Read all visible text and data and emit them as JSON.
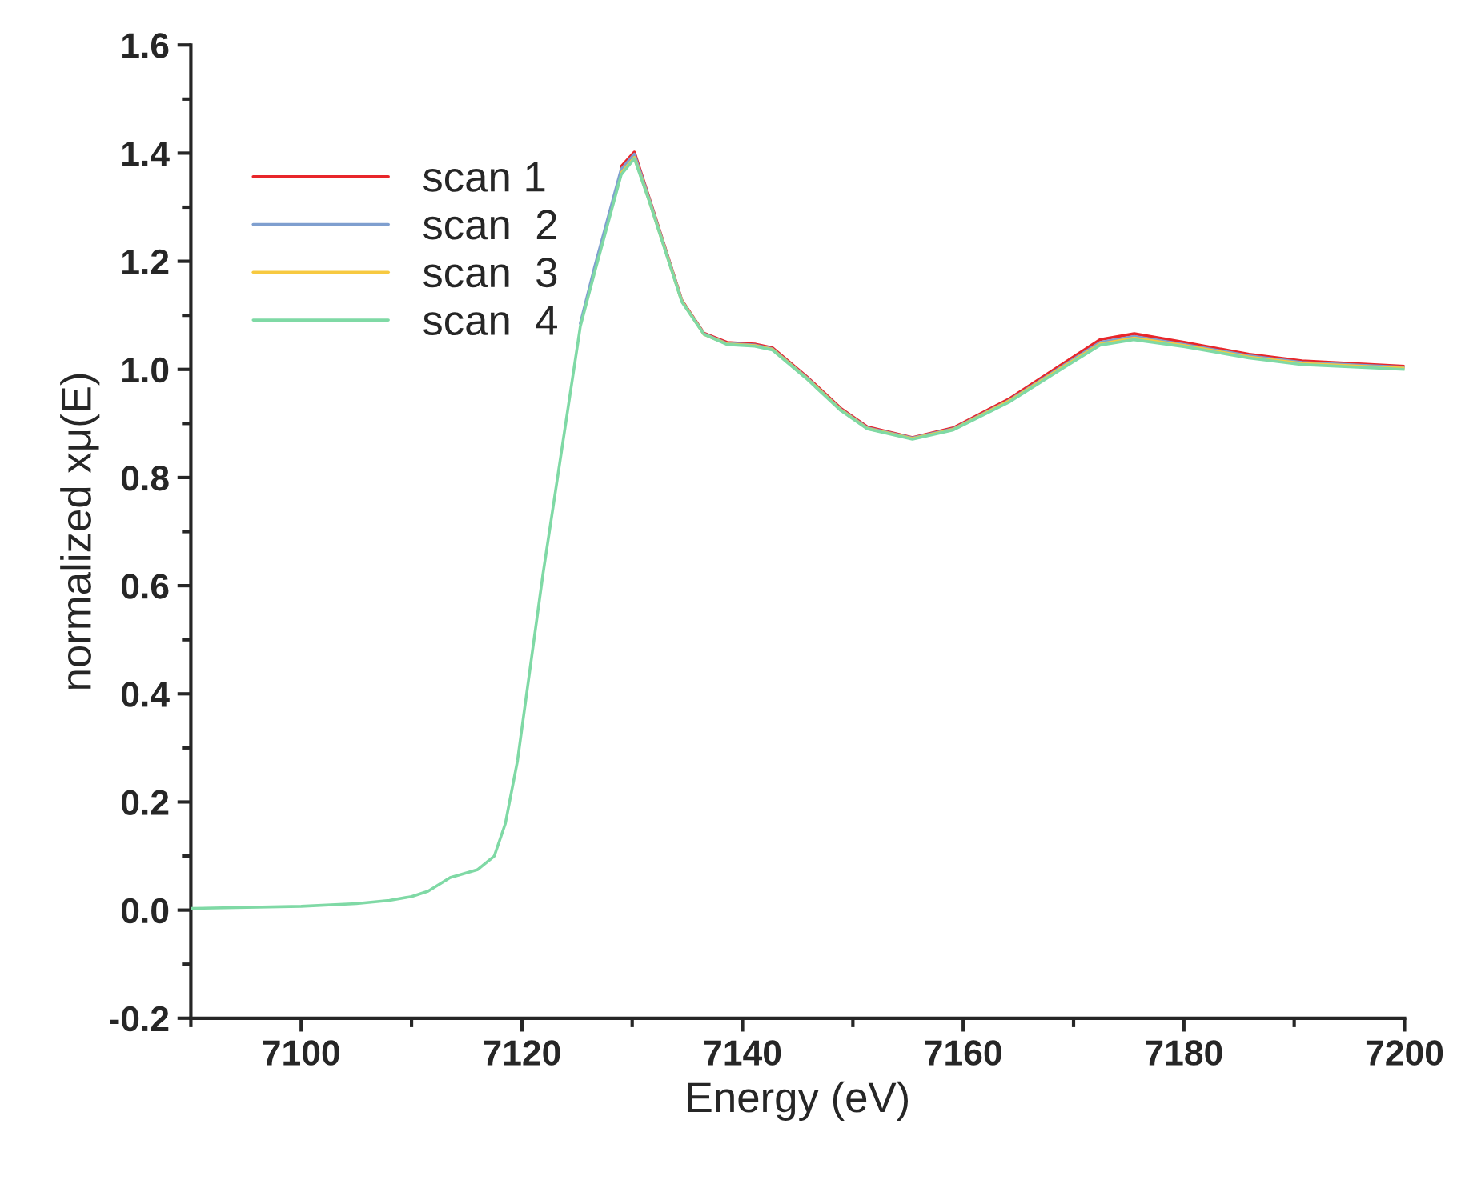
{
  "chart_data": {
    "type": "line",
    "xlabel": "Energy (eV)",
    "ylabel": "normalized xμ(E)",
    "x": [
      7090,
      7100,
      7105,
      7108,
      7110,
      7111.5,
      7113.5,
      7116,
      7117.5,
      7118.5,
      7119.6,
      7121.9,
      7122.9,
      7125.3,
      7126.6,
      7129.0,
      7130.2,
      7131.5,
      7134.5,
      7136.5,
      7138.6,
      7141.1,
      7142.7,
      7145.8,
      7148.9,
      7151.3,
      7155.4,
      7159.1,
      7164.2,
      7169.0,
      7172.4,
      7175.5,
      7180.1,
      7185.9,
      7190.7,
      7200
    ],
    "series": [
      {
        "name": "scan 1",
        "color": "#e8262a",
        "values": [
          null,
          null,
          null,
          null,
          null,
          null,
          null,
          null,
          null,
          null,
          null,
          null,
          null,
          null,
          null,
          1.375,
          1.402,
          1.32,
          1.128,
          1.067,
          1.05,
          1.047,
          1.04,
          0.987,
          0.928,
          0.894,
          0.874,
          0.892,
          0.946,
          1.01,
          1.055,
          1.066,
          1.05,
          1.028,
          1.016,
          1.006
        ]
      },
      {
        "name": "scan  2",
        "color": "#7f9fcf",
        "values": [
          null,
          null,
          null,
          null,
          null,
          null,
          null,
          null,
          null,
          null,
          null,
          null,
          null,
          1.085,
          1.19,
          1.37,
          1.398,
          1.318,
          1.127,
          1.066,
          1.048,
          1.045,
          1.038,
          0.985,
          0.926,
          0.892,
          0.873,
          0.89,
          0.943,
          1.006,
          1.05,
          1.061,
          1.046,
          1.025,
          1.013,
          1.004
        ]
      },
      {
        "name": "scan  3",
        "color": "#f7c940",
        "values": [
          null,
          null,
          null,
          null,
          null,
          null,
          null,
          null,
          null,
          null,
          null,
          null,
          null,
          null,
          null,
          1.363,
          1.392,
          1.315,
          1.126,
          1.065,
          1.047,
          1.044,
          1.037,
          0.984,
          0.925,
          0.891,
          0.872,
          0.889,
          0.942,
          1.004,
          1.047,
          1.058,
          1.044,
          1.023,
          1.011,
          1.002
        ]
      },
      {
        "name": "scan  4",
        "color": "#7fd9a5",
        "values": [
          0.003,
          0.007,
          0.012,
          0.018,
          0.025,
          0.035,
          0.06,
          0.075,
          0.1,
          0.16,
          0.276,
          0.62,
          0.755,
          1.08,
          1.18,
          1.36,
          1.39,
          1.314,
          1.125,
          1.065,
          1.046,
          1.043,
          1.036,
          0.983,
          0.924,
          0.89,
          0.871,
          0.888,
          0.94,
          1.002,
          1.045,
          1.055,
          1.042,
          1.021,
          1.009,
          1.0
        ]
      }
    ],
    "xlim": [
      7090,
      7200
    ],
    "xticks": [
      7100,
      7120,
      7140,
      7160,
      7180,
      7200
    ],
    "ylim": [
      -0.2,
      1.6
    ],
    "yticks": [
      -0.2,
      {
        "value": 0,
        "label": "0.0"
      },
      0.2,
      0.4,
      0.6,
      0.8,
      {
        "value": 1,
        "label": "1.0"
      },
      1.2,
      1.4,
      1.6
    ],
    "legend": "top left",
    "grid": false,
    "marker": "none",
    "line_style": "solid"
  }
}
